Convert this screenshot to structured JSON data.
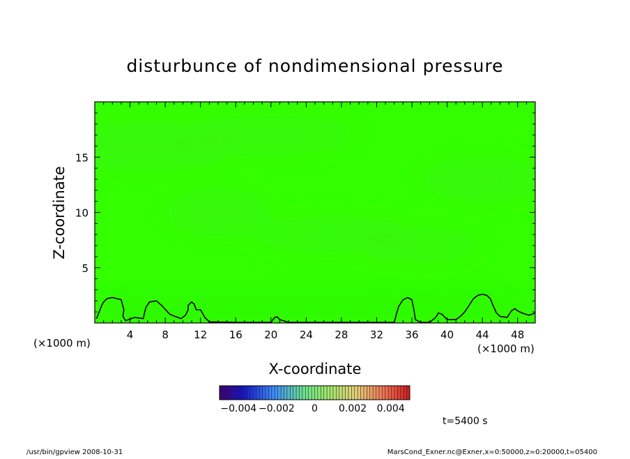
{
  "chart_data": {
    "type": "heatmap",
    "title": "disturbunce of nondimensional pressure",
    "xlabel": "X-coordinate",
    "ylabel": "Z-coordinate",
    "x_unit": "(×1000 m)",
    "y_unit": "(×1000 m)",
    "xlim": [
      0,
      50
    ],
    "ylim": [
      0,
      20
    ],
    "x_ticks": [
      4,
      8,
      12,
      16,
      20,
      24,
      28,
      32,
      36,
      40,
      44,
      48
    ],
    "y_ticks": [
      5,
      10,
      15
    ],
    "colorbar": {
      "range": [
        -0.005,
        0.005
      ],
      "tick_values": [
        -0.004,
        -0.002,
        0,
        0.002,
        0.004
      ],
      "tick_labels": [
        "−0.004",
        "−0.002",
        "0",
        "0.002",
        "0.004"
      ]
    },
    "contour_x": [
      0.2,
      0.5,
      0.8,
      1.0,
      1.4,
      2.0,
      3.0,
      3.3,
      3.2,
      3.5,
      4.5,
      5.5,
      5.8,
      6.2,
      7.0,
      7.7,
      8.5,
      9.1,
      9.8,
      10.3,
      10.6,
      10.6,
      11.0,
      11.3,
      11.5,
      11.7,
      12.0,
      12.5,
      13.0,
      16.0,
      18.0,
      20.0,
      20.4,
      20.7,
      21.0,
      22.0,
      27.0,
      28.5,
      34.0,
      34.2,
      34.5,
      35.0,
      35.5,
      36.0,
      36.2,
      36.4,
      37.0,
      38.0,
      38.7,
      39.0,
      39.4,
      40.0,
      41.0,
      41.5,
      42.0,
      42.5,
      43.0,
      43.5,
      44.0,
      44.5,
      44.9,
      45.2,
      45.6,
      46.0,
      46.8,
      47.3,
      47.7,
      48.0,
      48.5,
      49.3,
      50.0
    ],
    "contour_z": [
      0.4,
      1.0,
      1.6,
      1.9,
      2.2,
      2.3,
      2.1,
      1.2,
      0.6,
      0.2,
      0.5,
      0.4,
      1.4,
      1.9,
      2.0,
      1.5,
      0.8,
      0.6,
      0.4,
      0.7,
      1.2,
      1.6,
      1.9,
      1.7,
      1.2,
      1.2,
      1.2,
      0.5,
      0.1,
      0.05,
      0.05,
      0.05,
      0.5,
      0.55,
      0.3,
      0.05,
      0.05,
      0.05,
      0.05,
      0.7,
      1.5,
      2.1,
      2.3,
      2.1,
      1.3,
      0.3,
      0.05,
      0.05,
      0.5,
      0.9,
      0.8,
      0.3,
      0.3,
      0.6,
      1.0,
      1.6,
      2.2,
      2.5,
      2.6,
      2.5,
      2.2,
      1.6,
      0.9,
      0.6,
      0.5,
      1.1,
      1.3,
      1.1,
      0.9,
      0.7,
      0.9
    ],
    "field_level": 0
  },
  "footer": {
    "left": "/usr/bin/gpview   2008-10-31",
    "right": "MarsCond_Exner.nc@Exner,x=0:50000,z=0:20000,t=05400"
  },
  "time_label": "t=5400 s",
  "colors": {
    "field": "#33ff00",
    "field_light": "#3cf212",
    "field_dark": "#22ee00"
  }
}
